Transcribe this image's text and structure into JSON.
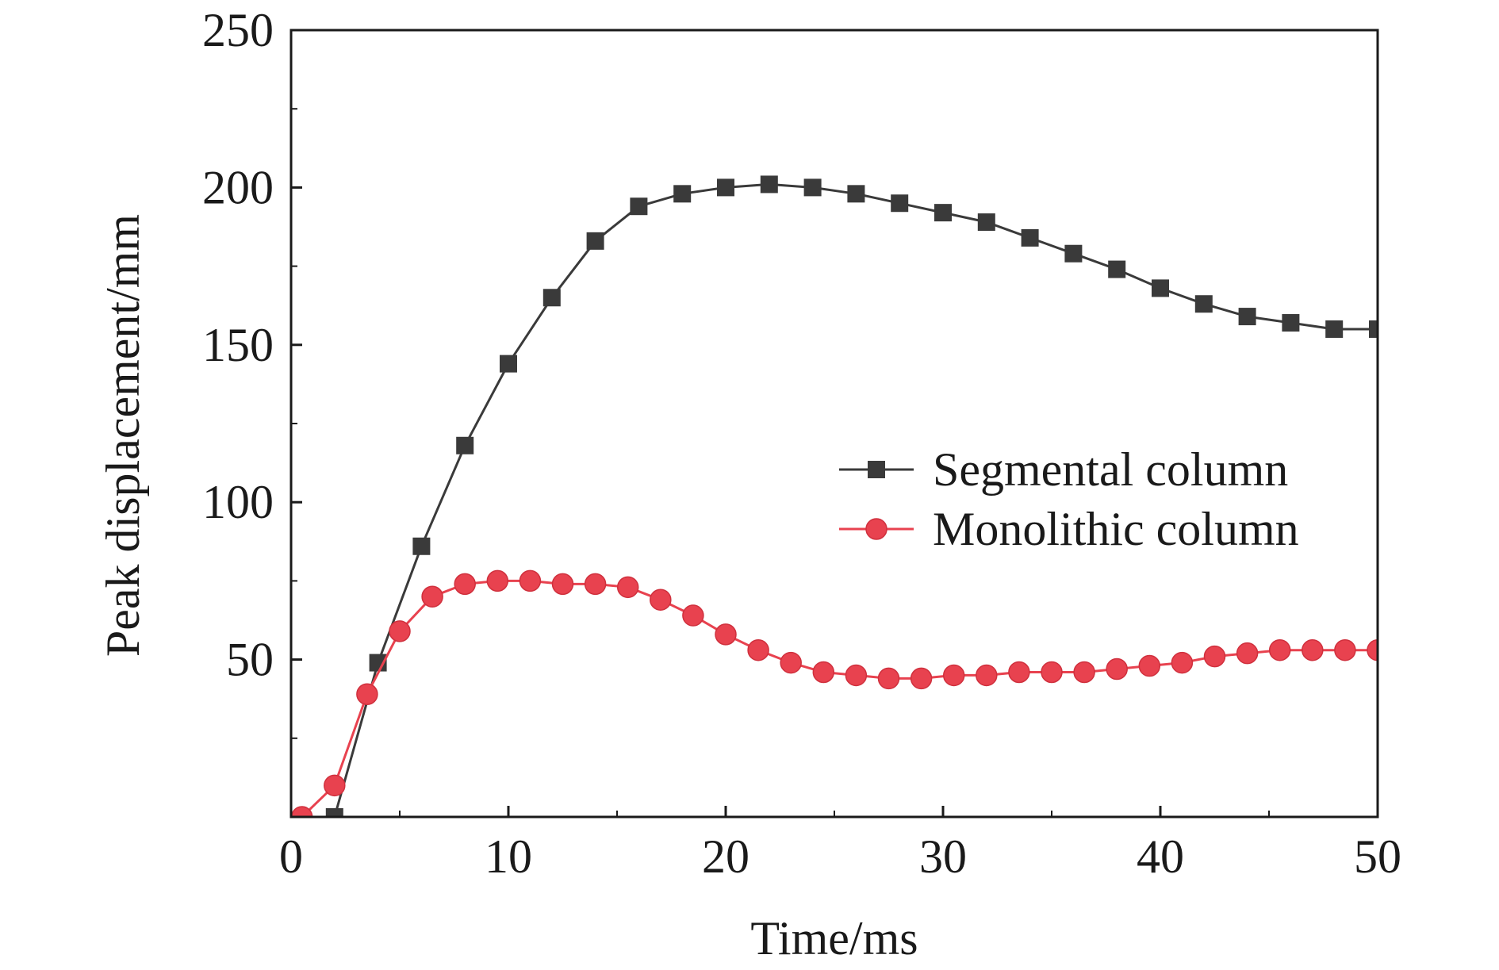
{
  "chart_data": {
    "type": "line",
    "title": "",
    "xlabel": "Time/ms",
    "ylabel": "Peak displacement/mm",
    "xlim": [
      0,
      50
    ],
    "ylim": [
      0,
      250
    ],
    "x_ticks": [
      {
        "value": 0,
        "label": "0"
      },
      {
        "value": 10,
        "label": "10"
      },
      {
        "value": 20,
        "label": "20"
      },
      {
        "value": 30,
        "label": "30"
      },
      {
        "value": 40,
        "label": "40"
      },
      {
        "value": 50,
        "label": "50"
      }
    ],
    "y_ticks": [
      {
        "value": 50,
        "label": "50"
      },
      {
        "value": 100,
        "label": "100"
      },
      {
        "value": 150,
        "label": "150"
      },
      {
        "value": 200,
        "label": "200"
      },
      {
        "value": 250,
        "label": "250"
      }
    ],
    "grid": false,
    "legend_position": "center-right",
    "series": [
      {
        "name": "Segmental column",
        "marker": "square",
        "color": "#3a3a3a",
        "x": [
          2,
          4,
          6,
          8,
          10,
          12,
          14,
          16,
          18,
          20,
          22,
          24,
          26,
          28,
          30,
          32,
          34,
          36,
          38,
          40,
          42,
          44,
          46,
          48,
          50
        ],
        "y": [
          0,
          49,
          86,
          118,
          144,
          165,
          183,
          194,
          198,
          200,
          201,
          200,
          198,
          195,
          192,
          189,
          184,
          179,
          174,
          168,
          163,
          159,
          157,
          155,
          155
        ]
      },
      {
        "name": "Monolithic column",
        "marker": "circle",
        "color": "#e8424f",
        "x": [
          0.5,
          2,
          3.5,
          5,
          6.5,
          8,
          9.5,
          11,
          12.5,
          14,
          15.5,
          17,
          18.5,
          20,
          21.5,
          23,
          24.5,
          26,
          27.5,
          29,
          30.5,
          32,
          33.5,
          35,
          36.5,
          38,
          39.5,
          41,
          42.5,
          44,
          45.5,
          47,
          48.5,
          50
        ],
        "y": [
          0,
          10,
          39,
          59,
          70,
          74,
          75,
          75,
          74,
          74,
          73,
          69,
          64,
          58,
          53,
          49,
          46,
          45,
          44,
          44,
          45,
          45,
          46,
          46,
          46,
          47,
          48,
          49,
          51,
          52,
          53,
          53,
          53,
          53
        ]
      }
    ]
  }
}
